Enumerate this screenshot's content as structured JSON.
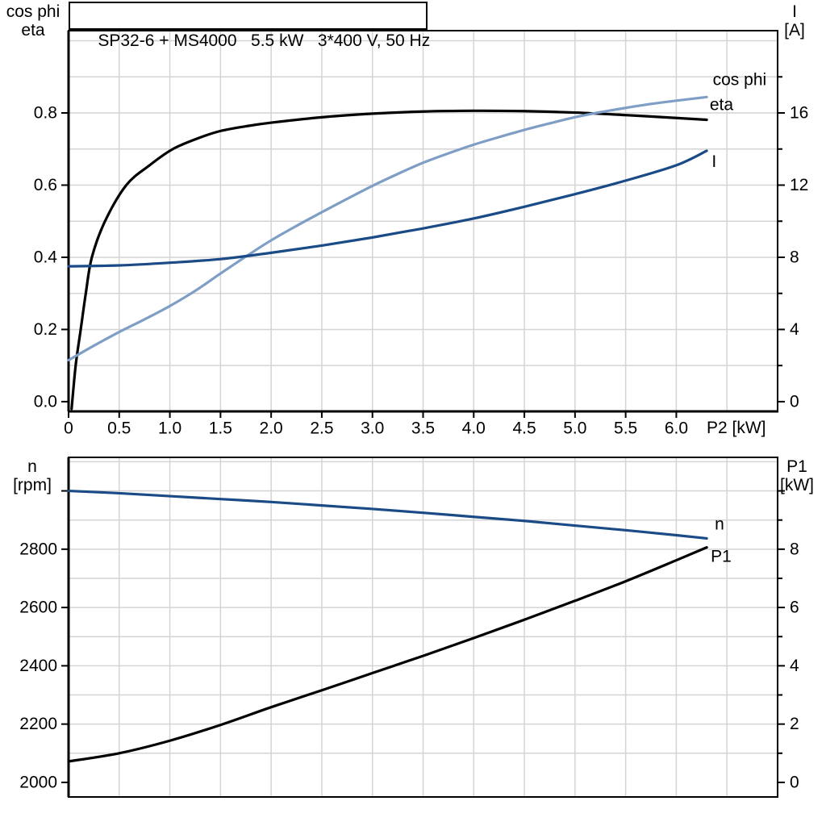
{
  "title": "SP32-6 + MS4000   5.5 kW   3*400 V, 50 Hz",
  "axis_titles": {
    "top_left": [
      "cos phi",
      "eta"
    ],
    "top_right": [
      "I",
      "[A]"
    ],
    "x": "P2 [kW]",
    "bottom_left": [
      "n",
      "[rpm]"
    ],
    "bottom_right": [
      "P1",
      "[kW]"
    ]
  },
  "colors": {
    "black": "#000000",
    "dark_blue": "#1a4b87",
    "light_blue": "#7e9ec5",
    "grid": "#d4d4d4",
    "background": "#ffffff"
  },
  "chart_data": [
    {
      "type": "line",
      "title": "SP32-6 + MS4000   5.5 kW   3*400 V, 50 Hz",
      "xlabel": "P2 [kW]",
      "xlim": [
        0,
        7.0
      ],
      "x_ticks": [
        0,
        0.5,
        1,
        1.5,
        2,
        2.5,
        3,
        3.5,
        4,
        4.5,
        5,
        5.5,
        6
      ],
      "x_tick_labels": [
        "0",
        "0.5",
        "1.0",
        "1.5",
        "2.0",
        "2.5",
        "3.0",
        "3.5",
        "4.0",
        "4.5",
        "5.0",
        "5.5",
        "6.0"
      ],
      "x_gridlines": [
        0.5,
        1,
        1.5,
        2,
        2.5,
        3,
        3.5,
        4,
        4.5,
        5,
        5.5,
        6,
        6.5
      ],
      "left_axis": {
        "title": "cos phi / eta",
        "lim": [
          -0.027,
          1.028
        ],
        "tick_values": [
          0,
          0.2,
          0.4,
          0.6,
          0.8
        ],
        "tick_labels": [
          "0.0",
          "0.2",
          "0.4",
          "0.6",
          "0.8"
        ],
        "unlabeled_ticks": [],
        "gridlines": [
          0.1,
          0.2,
          0.3,
          0.4,
          0.5,
          0.6,
          0.7,
          0.8,
          0.9,
          1.0
        ]
      },
      "right_axis": {
        "title": "I [A]",
        "lim": [
          -0.54,
          20.56
        ],
        "tick_values": [
          0,
          4,
          8,
          12,
          16
        ],
        "tick_labels": [
          "0",
          "4",
          "8",
          "12",
          "16"
        ],
        "minor_ticks": [
          2,
          6,
          10,
          14,
          18
        ],
        "unlabeled_ticks": []
      },
      "series": [
        {
          "name": "eta",
          "axis": "left",
          "color": "#000000",
          "points": [
            [
              0.03,
              -0.02
            ],
            [
              0.07,
              0.1
            ],
            [
              0.12,
              0.2
            ],
            [
              0.17,
              0.3
            ],
            [
              0.23,
              0.4
            ],
            [
              0.36,
              0.5
            ],
            [
              0.57,
              0.6
            ],
            [
              0.8,
              0.655
            ],
            [
              1.03,
              0.7
            ],
            [
              1.3,
              0.732
            ],
            [
              1.5,
              0.75
            ],
            [
              1.75,
              0.763
            ],
            [
              2.0,
              0.773
            ],
            [
              2.5,
              0.788
            ],
            [
              3.0,
              0.798
            ],
            [
              3.5,
              0.804
            ],
            [
              4.0,
              0.806
            ],
            [
              4.5,
              0.805
            ],
            [
              5.0,
              0.801
            ],
            [
              5.5,
              0.794
            ],
            [
              6.0,
              0.786
            ],
            [
              6.3,
              0.781
            ]
          ]
        },
        {
          "name": "cos phi",
          "axis": "left",
          "color": "#7e9ec5",
          "points": [
            [
              0,
              0.115
            ],
            [
              0.25,
              0.155
            ],
            [
              0.5,
              0.193
            ],
            [
              0.75,
              0.228
            ],
            [
              1.0,
              0.265
            ],
            [
              1.25,
              0.307
            ],
            [
              1.5,
              0.355
            ],
            [
              1.75,
              0.402
            ],
            [
              2.0,
              0.447
            ],
            [
              2.25,
              0.487
            ],
            [
              2.5,
              0.525
            ],
            [
              2.75,
              0.562
            ],
            [
              3.0,
              0.598
            ],
            [
              3.25,
              0.631
            ],
            [
              3.5,
              0.662
            ],
            [
              3.75,
              0.688
            ],
            [
              4.0,
              0.712
            ],
            [
              4.25,
              0.733
            ],
            [
              4.5,
              0.753
            ],
            [
              4.75,
              0.771
            ],
            [
              5.0,
              0.788
            ],
            [
              5.25,
              0.802
            ],
            [
              5.5,
              0.814
            ],
            [
              5.75,
              0.825
            ],
            [
              6.0,
              0.834
            ],
            [
              6.3,
              0.844
            ]
          ]
        },
        {
          "name": "I",
          "axis": "right",
          "color": "#1a4b87",
          "points": [
            [
              0,
              7.5
            ],
            [
              0.5,
              7.55
            ],
            [
              1.0,
              7.7
            ],
            [
              1.5,
              7.9
            ],
            [
              2.0,
              8.25
            ],
            [
              2.5,
              8.65
            ],
            [
              3.0,
              9.1
            ],
            [
              3.5,
              9.6
            ],
            [
              4.0,
              10.15
            ],
            [
              4.5,
              10.8
            ],
            [
              5.0,
              11.5
            ],
            [
              5.5,
              12.25
            ],
            [
              6.0,
              13.1
            ],
            [
              6.3,
              13.9
            ]
          ]
        }
      ],
      "annotations": [
        {
          "text": "cos phi",
          "axis": "left",
          "x": 6.36,
          "y": 0.892,
          "color": "#7e9ec5"
        },
        {
          "text": "eta",
          "axis": "left",
          "x": 6.33,
          "y": 0.822,
          "color": "#000000"
        },
        {
          "text": "I",
          "axis": "right",
          "x": 6.35,
          "y": 13.3,
          "color": "#1a4b87"
        }
      ]
    },
    {
      "type": "line",
      "title": "",
      "xlabel": "",
      "xlim": [
        0,
        7.0
      ],
      "x_ticks": [],
      "x_tick_labels": [],
      "x_gridlines": [
        0.5,
        1,
        1.5,
        2,
        2.5,
        3,
        3.5,
        4,
        4.5,
        5,
        5.5,
        6,
        6.5
      ],
      "left_axis": {
        "title": "n [rpm]",
        "lim": [
          1950,
          3115
        ],
        "tick_values": [
          2000,
          2200,
          2400,
          2600,
          2800
        ],
        "tick_labels": [
          "2000",
          "2200",
          "2400",
          "2600",
          "2800"
        ],
        "unlabeled_ticks": [
          3000
        ],
        "gridlines": [
          2100,
          2200,
          2300,
          2400,
          2500,
          2600,
          2700,
          2800,
          2900,
          3000,
          3100
        ]
      },
      "right_axis": {
        "title": "P1 [kW]",
        "lim": [
          -0.5,
          11.15
        ],
        "tick_values": [
          0,
          2,
          4,
          6,
          8
        ],
        "tick_labels": [
          "0",
          "2",
          "4",
          "6",
          "8"
        ],
        "minor_ticks": [
          1,
          3,
          5,
          7,
          9
        ],
        "unlabeled_ticks": [
          10
        ]
      },
      "series": [
        {
          "name": "n",
          "axis": "left",
          "color": "#1a4b87",
          "points": [
            [
              0,
              3000
            ],
            [
              0.5,
              2992
            ],
            [
              1.0,
              2982
            ],
            [
              1.5,
              2972
            ],
            [
              2.0,
              2962
            ],
            [
              2.5,
              2950
            ],
            [
              3.0,
              2938
            ],
            [
              3.5,
              2925
            ],
            [
              4.0,
              2911
            ],
            [
              4.5,
              2897
            ],
            [
              5.0,
              2881
            ],
            [
              5.5,
              2865
            ],
            [
              6.0,
              2848
            ],
            [
              6.3,
              2837
            ]
          ]
        },
        {
          "name": "P1",
          "axis": "right",
          "color": "#000000",
          "points": [
            [
              0,
              0.72
            ],
            [
              0.5,
              1.0
            ],
            [
              1.0,
              1.43
            ],
            [
              1.5,
              1.97
            ],
            [
              2.0,
              2.58
            ],
            [
              2.5,
              3.16
            ],
            [
              3.0,
              3.75
            ],
            [
              3.5,
              4.34
            ],
            [
              4.0,
              4.95
            ],
            [
              4.5,
              5.58
            ],
            [
              5.0,
              6.23
            ],
            [
              5.5,
              6.9
            ],
            [
              6.0,
              7.62
            ],
            [
              6.3,
              8.06
            ]
          ]
        }
      ],
      "annotations": [
        {
          "text": "n",
          "axis": "left",
          "x": 6.38,
          "y": 2886,
          "color": "#1a4b87"
        },
        {
          "text": "P1",
          "axis": "right",
          "x": 6.34,
          "y": 7.75,
          "color": "#000000"
        }
      ]
    }
  ]
}
